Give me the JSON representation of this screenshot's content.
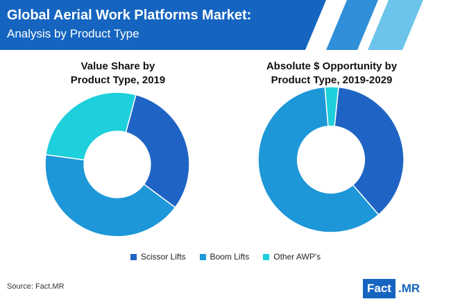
{
  "header": {
    "title": "Global Aerial Work Platforms Market:",
    "subtitle": "Analysis by Product Type",
    "colors": {
      "dark": "#1565c0",
      "mid": "#2f8fd8",
      "light": "#6cc4ea"
    }
  },
  "chart_data": [
    {
      "type": "pie",
      "title": "Value Share by Product Type, 2019",
      "title_lines": [
        "Value Share by",
        "Product Type, 2019"
      ],
      "categories": [
        "Scissor Lifts",
        "Boom Lifts",
        "Other AWP's"
      ],
      "values": [
        31,
        42,
        27
      ],
      "colors": [
        "#1f64c4",
        "#1d97d8",
        "#1ecfdc"
      ],
      "start_angle_deg": 15,
      "donut": true
    },
    {
      "type": "pie",
      "title": "Absolute $ Opportunity by Product Type, 2019-2029",
      "title_lines": [
        "Absolute $ Opportunity by",
        "Product Type, 2019-2029"
      ],
      "categories": [
        "Scissor Lifts",
        "Boom Lifts",
        "Other AWP's"
      ],
      "values": [
        37,
        60,
        3
      ],
      "colors": [
        "#1f64c4",
        "#1d97d8",
        "#1ecfdc"
      ],
      "start_angle_deg": 6,
      "donut": true
    }
  ],
  "legend": {
    "items": [
      {
        "label": "Scissor Lifts",
        "color": "#1f64c4"
      },
      {
        "label": "Boom Lifts",
        "color": "#1d97d8"
      },
      {
        "label": "Other AWP's",
        "color": "#1ecfdc"
      }
    ]
  },
  "source": "Source: Fact.MR",
  "logo": {
    "part1": "Fact",
    "part2": ".MR"
  }
}
